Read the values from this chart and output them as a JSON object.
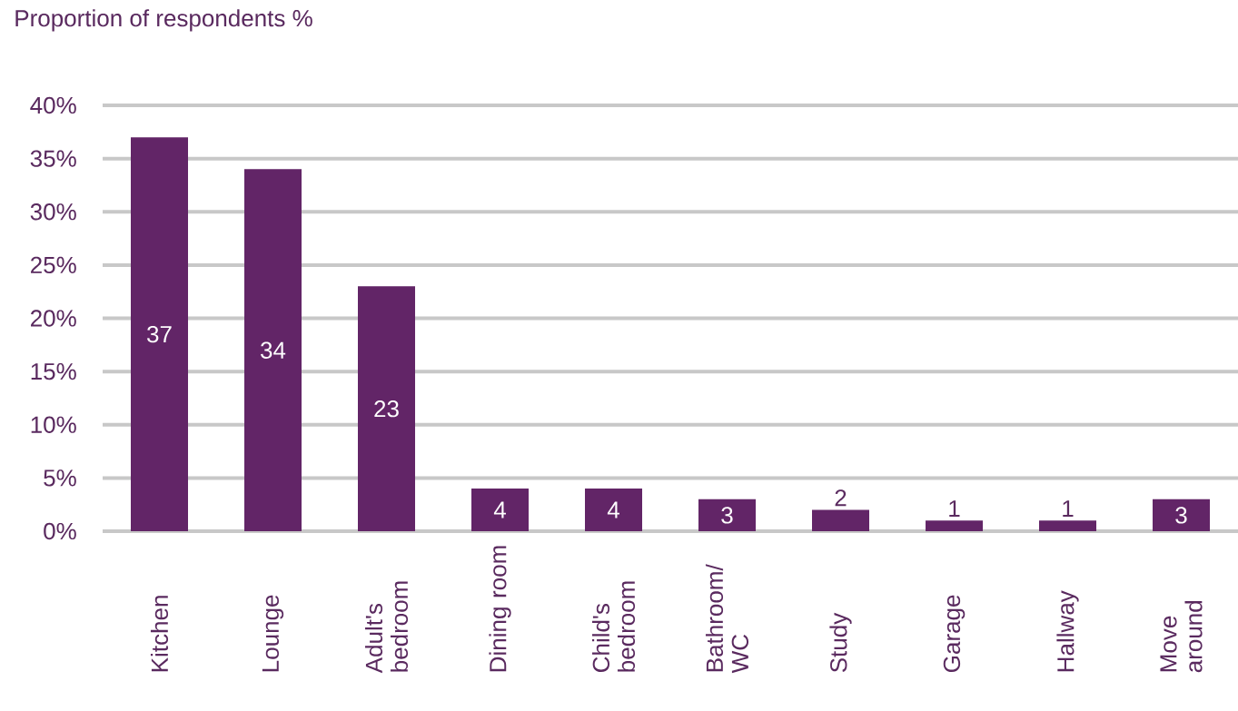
{
  "chart_data": {
    "type": "bar",
    "ylabel": "Proportion of respondents %",
    "categories": [
      "Kitchen",
      "Lounge",
      "Adult's bedroom",
      "Dining room",
      "Child's bedroom",
      "Bathroom/ WC",
      "Study",
      "Garage",
      "Hallway",
      "Move around"
    ],
    "values": [
      37,
      34,
      23,
      4,
      4,
      3,
      2,
      1,
      1,
      3
    ],
    "color": "#622567",
    "data_labels": true,
    "grid": "y",
    "ylim": [
      0,
      40
    ],
    "yticks": [
      {
        "value": 0,
        "label": "0%"
      },
      {
        "value": 5,
        "label": "5%"
      },
      {
        "value": 10,
        "label": "10%"
      },
      {
        "value": 15,
        "label": "15%"
      },
      {
        "value": 20,
        "label": "20%"
      },
      {
        "value": 25,
        "label": "25%"
      },
      {
        "value": 30,
        "label": "30%"
      },
      {
        "value": 35,
        "label": "35%"
      },
      {
        "value": 40,
        "label": "40%"
      }
    ]
  }
}
